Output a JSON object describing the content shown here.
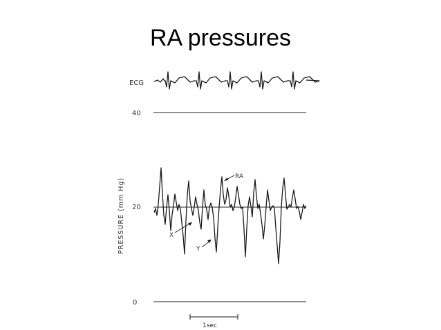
{
  "slide": {
    "title": "RA pressures"
  },
  "figure": {
    "ecg_label": "ECG",
    "y_axis_label": "PRESSURE  (mm Hg)",
    "ticks": [
      "40",
      "20",
      "0"
    ],
    "annotations": {
      "ra": "RA",
      "x": "X",
      "y": "Y"
    },
    "scale_bar_label": "1sec"
  },
  "colors": {
    "ink": "#1a1a1a",
    "background": "#ffffff"
  }
}
